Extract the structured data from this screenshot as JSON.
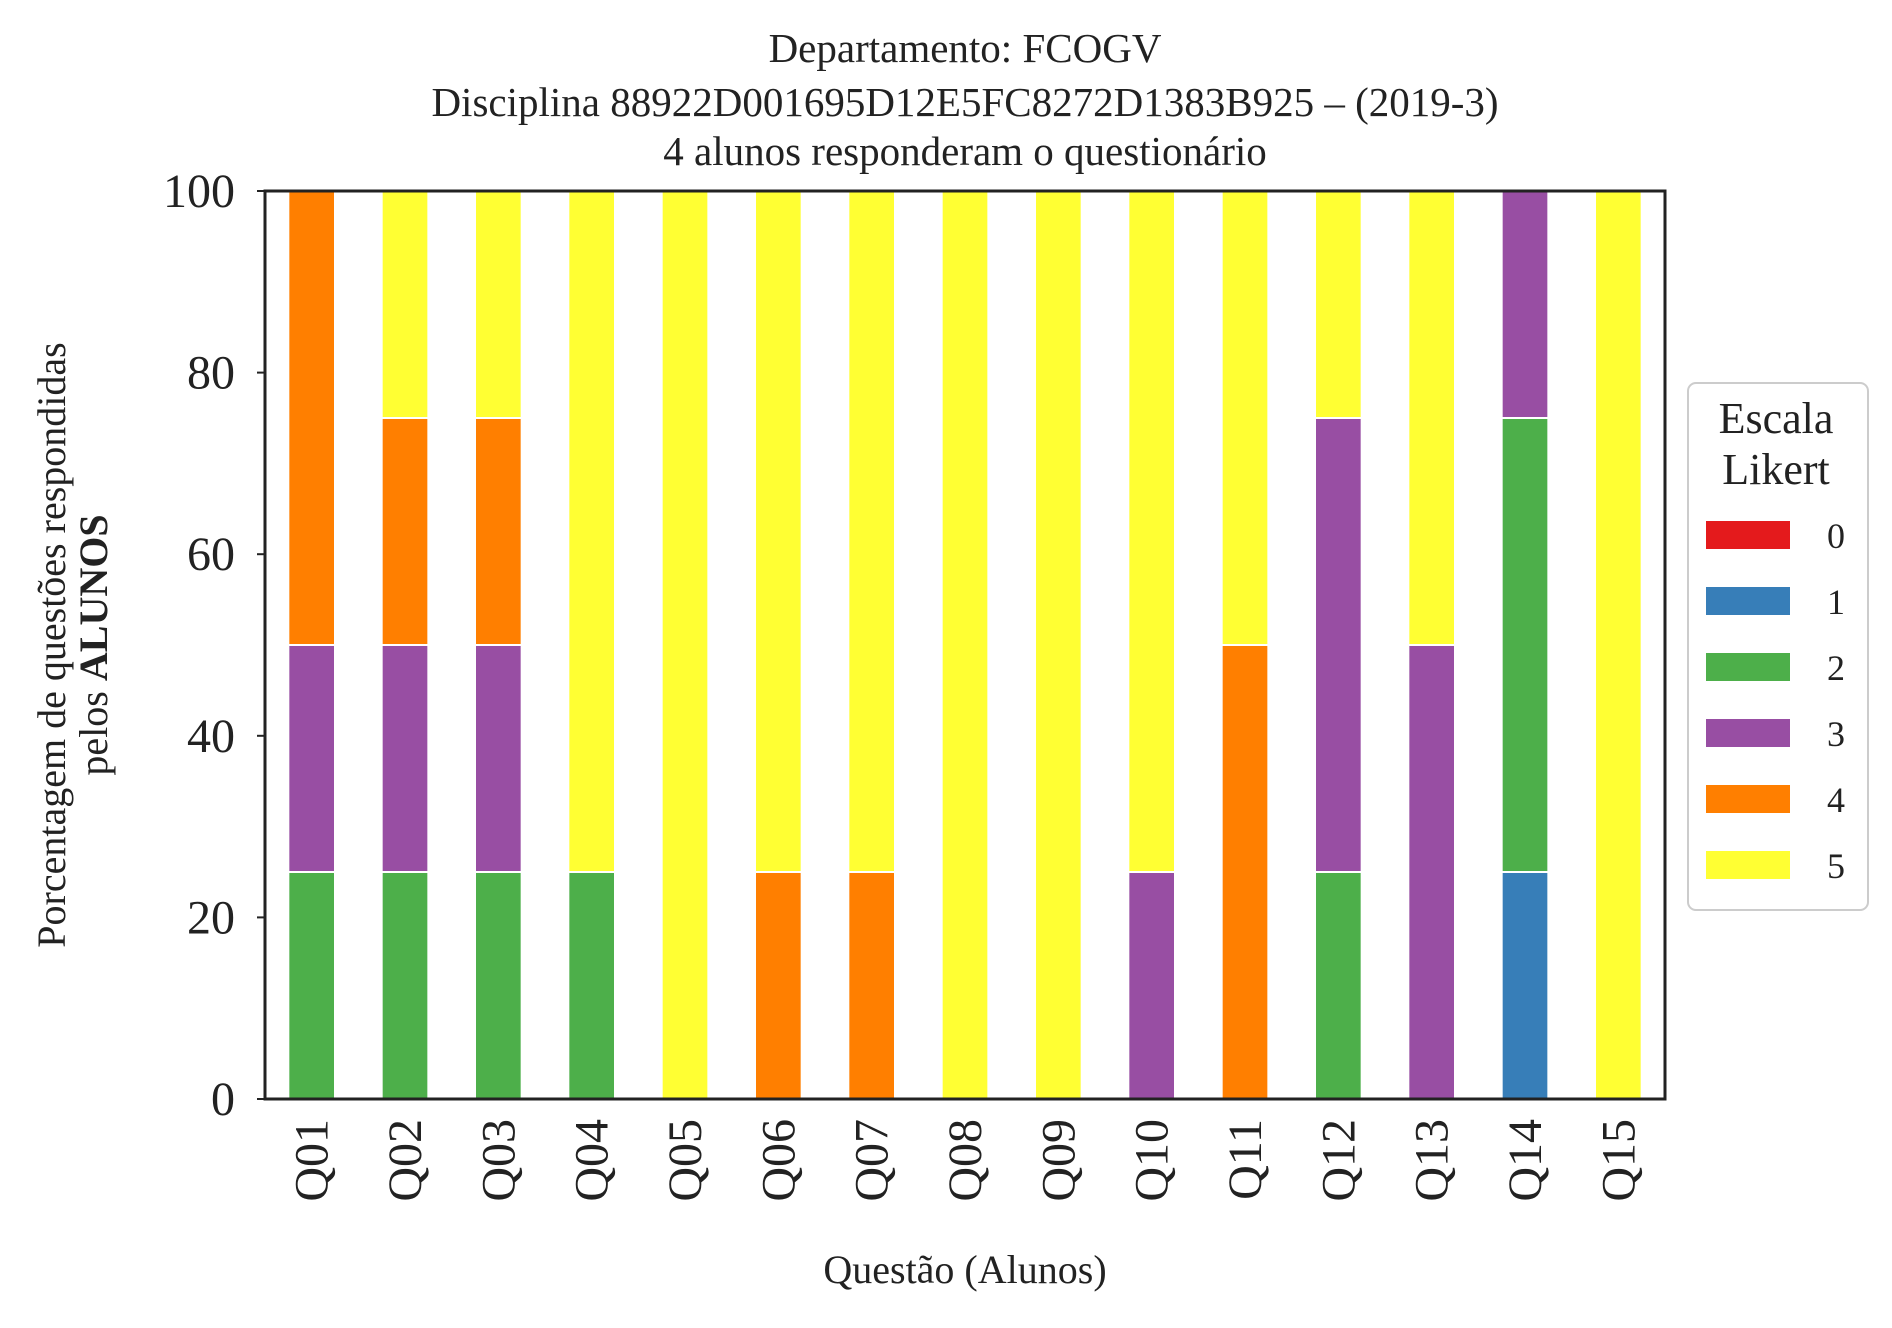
{
  "chart_data": {
    "type": "bar",
    "stacked": true,
    "title_lines": [
      "Departamento: FCOGV",
      "Disciplina 88922D001695D12E5FC8272D1383B925 – (2019-3)",
      "4 alunos responderam o questionário"
    ],
    "xlabel": "Questão (Alunos)",
    "ylabel_line1": "Porcentagem de questões respondidas",
    "ylabel_line2_prefix": "pelos ",
    "ylabel_line2_bold": "ALUNOS",
    "ylim": [
      0,
      100
    ],
    "yticks": [
      "0",
      "20",
      "40",
      "60",
      "80",
      "100"
    ],
    "grid": false,
    "legend": {
      "title_lines": [
        "Escala",
        "Likert"
      ],
      "placement": "right"
    },
    "categories": [
      "Q01",
      "Q02",
      "Q03",
      "Q04",
      "Q05",
      "Q06",
      "Q07",
      "Q08",
      "Q09",
      "Q10",
      "Q11",
      "Q12",
      "Q13",
      "Q14",
      "Q15"
    ],
    "series": [
      {
        "name": "0",
        "color": "#e41a1c",
        "values": [
          0,
          0,
          0,
          0,
          0,
          0,
          0,
          0,
          0,
          0,
          0,
          0,
          0,
          0,
          0
        ]
      },
      {
        "name": "1",
        "color": "#377eb8",
        "values": [
          0,
          0,
          0,
          0,
          0,
          0,
          0,
          0,
          0,
          0,
          0,
          0,
          0,
          25,
          0
        ]
      },
      {
        "name": "2",
        "color": "#4daf4a",
        "values": [
          25,
          25,
          25,
          25,
          0,
          0,
          0,
          0,
          0,
          0,
          0,
          25,
          0,
          50,
          0
        ]
      },
      {
        "name": "3",
        "color": "#984ea3",
        "values": [
          25,
          25,
          25,
          0,
          0,
          0,
          0,
          0,
          0,
          25,
          0,
          50,
          50,
          25,
          0
        ]
      },
      {
        "name": "4",
        "color": "#ff7f00",
        "values": [
          50,
          25,
          25,
          0,
          0,
          25,
          25,
          0,
          0,
          0,
          50,
          0,
          0,
          0,
          0
        ]
      },
      {
        "name": "5",
        "color": "#ffff33",
        "values": [
          0,
          25,
          25,
          75,
          100,
          75,
          75,
          100,
          100,
          75,
          50,
          25,
          50,
          0,
          100
        ]
      }
    ]
  }
}
